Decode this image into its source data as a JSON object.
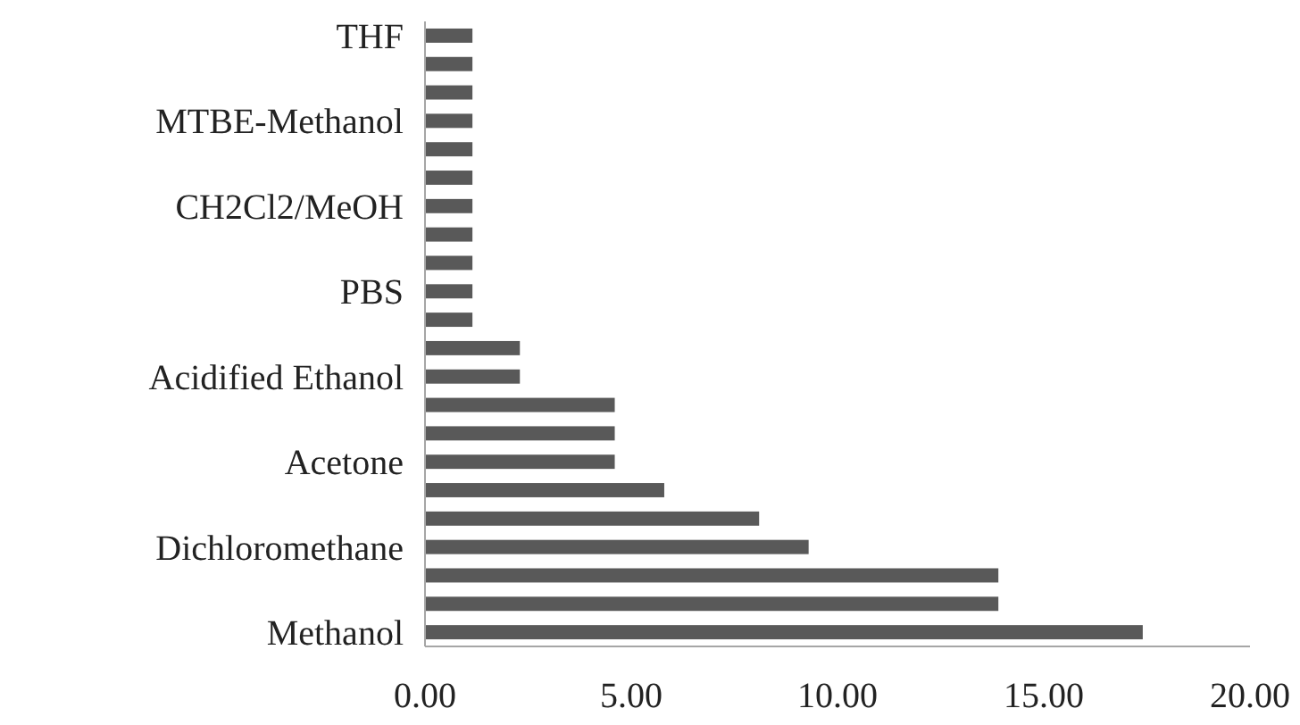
{
  "chart_data": {
    "type": "bar",
    "orientation": "horizontal",
    "categories": [
      "THF",
      null,
      null,
      "MTBE-Methanol",
      null,
      null,
      "CH2Cl2/MeOH",
      null,
      null,
      "PBS",
      null,
      null,
      "Acidified Ethanol",
      null,
      null,
      "Acetone",
      null,
      null,
      "Dichloromethane",
      null,
      null,
      "Methanol"
    ],
    "values": [
      1.15,
      1.15,
      1.15,
      1.15,
      1.15,
      1.15,
      1.15,
      1.15,
      1.15,
      1.15,
      1.15,
      2.3,
      2.3,
      4.6,
      4.6,
      4.6,
      5.8,
      8.1,
      9.3,
      13.9,
      13.9,
      17.4
    ],
    "color": "#595959",
    "xlim": [
      0,
      20
    ],
    "xticks": [
      {
        "value": 0,
        "label": "0.00"
      },
      {
        "value": 5,
        "label": "5.00"
      },
      {
        "value": 10,
        "label": "10.00"
      },
      {
        "value": 15,
        "label": "15.00"
      },
      {
        "value": 20,
        "label": "20.00"
      }
    ],
    "grid": false
  }
}
